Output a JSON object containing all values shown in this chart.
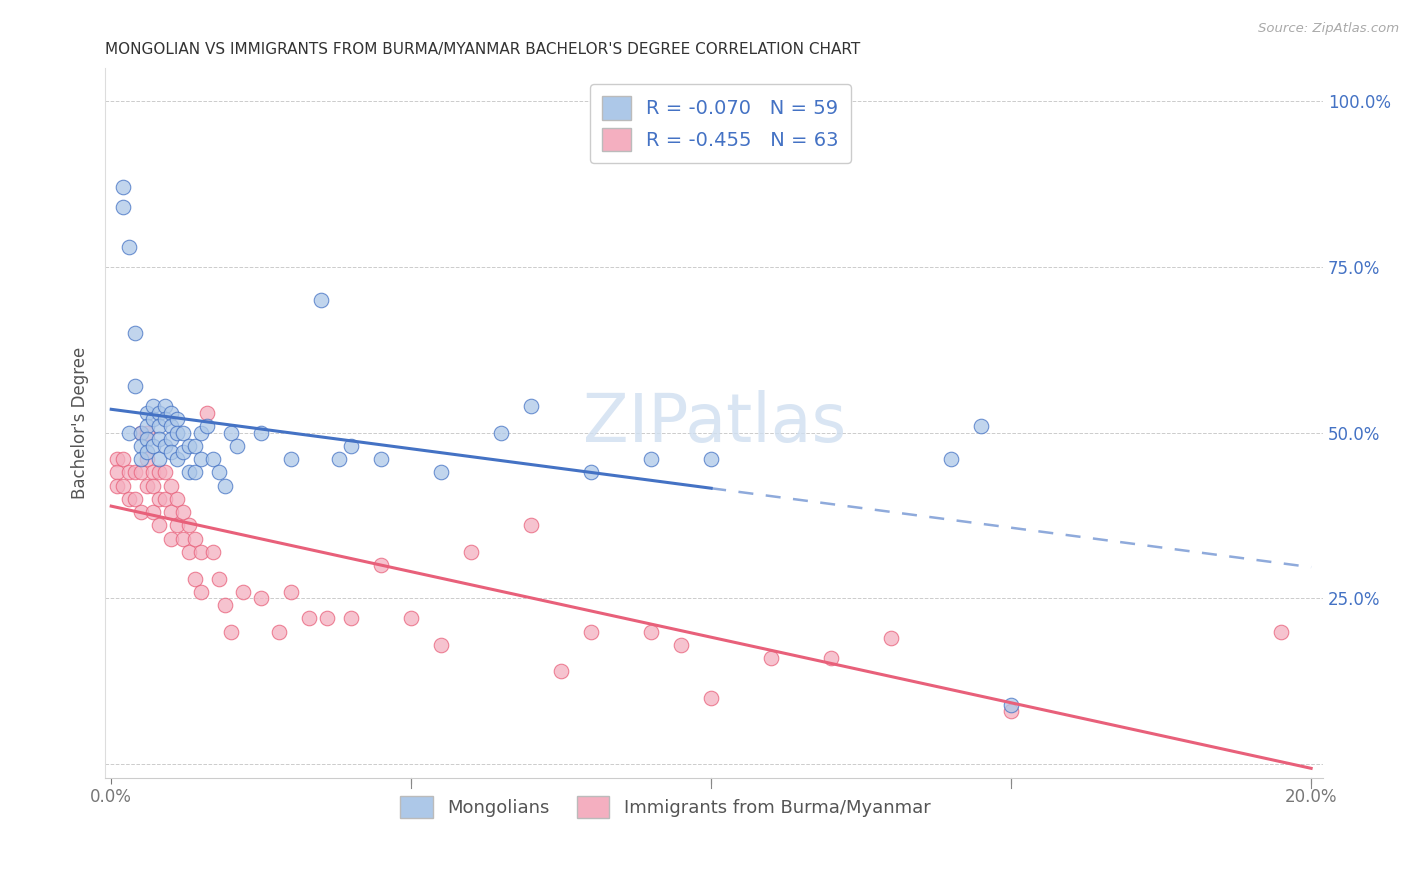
{
  "title": "MONGOLIAN VS IMMIGRANTS FROM BURMA/MYANMAR BACHELOR'S DEGREE CORRELATION CHART",
  "source": "Source: ZipAtlas.com",
  "ylabel": "Bachelor's Degree",
  "xlim": [
    -0.001,
    0.202
  ],
  "ylim": [
    -0.02,
    1.05
  ],
  "blue_R": -0.07,
  "blue_N": 59,
  "pink_R": -0.455,
  "pink_N": 63,
  "blue_color": "#adc8e8",
  "blue_line_color": "#4472c4",
  "pink_color": "#f4afc0",
  "pink_line_color": "#e8607a",
  "legend_text_color": "#4472c4",
  "right_axis_color": "#4472c4",
  "blue_scatter_x": [
    0.002,
    0.002,
    0.003,
    0.003,
    0.004,
    0.004,
    0.005,
    0.005,
    0.005,
    0.006,
    0.006,
    0.006,
    0.006,
    0.007,
    0.007,
    0.007,
    0.008,
    0.008,
    0.008,
    0.008,
    0.009,
    0.009,
    0.009,
    0.01,
    0.01,
    0.01,
    0.01,
    0.011,
    0.011,
    0.011,
    0.012,
    0.012,
    0.013,
    0.013,
    0.014,
    0.014,
    0.015,
    0.015,
    0.016,
    0.017,
    0.018,
    0.019,
    0.02,
    0.021,
    0.025,
    0.03,
    0.035,
    0.038,
    0.04,
    0.045,
    0.055,
    0.065,
    0.07,
    0.08,
    0.09,
    0.1,
    0.14,
    0.145,
    0.15
  ],
  "blue_scatter_y": [
    0.87,
    0.84,
    0.5,
    0.78,
    0.65,
    0.57,
    0.5,
    0.48,
    0.46,
    0.53,
    0.51,
    0.49,
    0.47,
    0.54,
    0.52,
    0.48,
    0.53,
    0.51,
    0.49,
    0.46,
    0.54,
    0.52,
    0.48,
    0.53,
    0.51,
    0.49,
    0.47,
    0.52,
    0.5,
    0.46,
    0.5,
    0.47,
    0.48,
    0.44,
    0.48,
    0.44,
    0.5,
    0.46,
    0.51,
    0.46,
    0.44,
    0.42,
    0.5,
    0.48,
    0.5,
    0.46,
    0.7,
    0.46,
    0.48,
    0.46,
    0.44,
    0.5,
    0.54,
    0.44,
    0.46,
    0.46,
    0.46,
    0.51,
    0.09
  ],
  "pink_scatter_x": [
    0.001,
    0.001,
    0.001,
    0.002,
    0.002,
    0.003,
    0.003,
    0.004,
    0.004,
    0.005,
    0.005,
    0.005,
    0.006,
    0.006,
    0.006,
    0.007,
    0.007,
    0.007,
    0.008,
    0.008,
    0.008,
    0.009,
    0.009,
    0.01,
    0.01,
    0.01,
    0.011,
    0.011,
    0.012,
    0.012,
    0.013,
    0.013,
    0.014,
    0.014,
    0.015,
    0.015,
    0.016,
    0.017,
    0.018,
    0.019,
    0.02,
    0.022,
    0.025,
    0.028,
    0.03,
    0.033,
    0.036,
    0.04,
    0.045,
    0.05,
    0.055,
    0.06,
    0.07,
    0.075,
    0.08,
    0.09,
    0.095,
    0.1,
    0.11,
    0.12,
    0.13,
    0.15,
    0.195
  ],
  "pink_scatter_y": [
    0.46,
    0.44,
    0.42,
    0.46,
    0.42,
    0.44,
    0.4,
    0.44,
    0.4,
    0.5,
    0.44,
    0.38,
    0.5,
    0.46,
    0.42,
    0.44,
    0.42,
    0.38,
    0.44,
    0.4,
    0.36,
    0.44,
    0.4,
    0.42,
    0.38,
    0.34,
    0.4,
    0.36,
    0.38,
    0.34,
    0.36,
    0.32,
    0.34,
    0.28,
    0.32,
    0.26,
    0.53,
    0.32,
    0.28,
    0.24,
    0.2,
    0.26,
    0.25,
    0.2,
    0.26,
    0.22,
    0.22,
    0.22,
    0.3,
    0.22,
    0.18,
    0.32,
    0.36,
    0.14,
    0.2,
    0.2,
    0.18,
    0.1,
    0.16,
    0.16,
    0.19,
    0.08,
    0.2
  ],
  "background_color": "#ffffff",
  "legend_label_blue": "Mongolians",
  "legend_label_pink": "Immigrants from Burma/Myanmar",
  "grid_color": "#cccccc",
  "blue_trend_start": 0.0,
  "blue_trend_solid_end": 0.1,
  "blue_trend_end": 0.2,
  "pink_trend_start": 0.0,
  "pink_trend_end": 0.2
}
